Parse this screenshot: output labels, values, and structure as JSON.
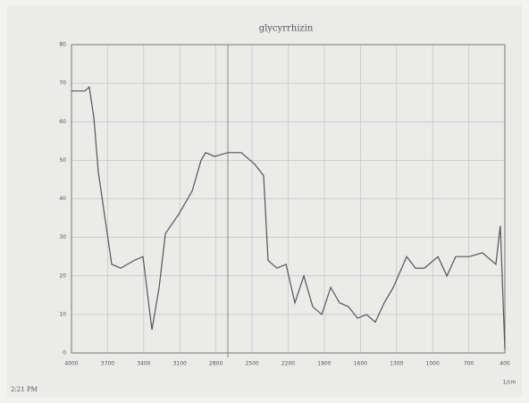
{
  "chart_data": {
    "type": "line",
    "title": "glycyrrhizin",
    "x_label": "1/cm",
    "x": [
      4000,
      3889,
      3852,
      3814,
      3777,
      3703,
      3666,
      3592,
      3480,
      3406,
      3332,
      3272,
      3220,
      3109,
      2998,
      2924,
      2886,
      2812,
      2701,
      2590,
      2478,
      2404,
      2367,
      2293,
      2218,
      2144,
      2070,
      1996,
      1921,
      1847,
      1773,
      1699,
      1624,
      1550,
      1476,
      1402,
      1327,
      1216,
      1142,
      1068,
      956,
      882,
      808,
      697,
      586,
      475,
      438,
      400
    ],
    "values": [
      68,
      68,
      69,
      61,
      47,
      31,
      23,
      22,
      24,
      25,
      6,
      17,
      31,
      36,
      42,
      50,
      52,
      51,
      52,
      52,
      49,
      46,
      24,
      22,
      23,
      13,
      20,
      12,
      10,
      17,
      13,
      12,
      9,
      10,
      8,
      13,
      17,
      25,
      22,
      22,
      25,
      20,
      25,
      25,
      26,
      23,
      33,
      1
    ],
    "color": "#555555",
    "xlim": [
      4000,
      400
    ],
    "xticks": [
      4000,
      3700,
      3400,
      3100,
      2800,
      2500,
      2200,
      1900,
      1600,
      1300,
      1000,
      700,
      400
    ],
    "ylim": [
      0,
      80
    ],
    "yticks": [
      0,
      10,
      20,
      30,
      40,
      50,
      60,
      70,
      80
    ],
    "grid": true
  },
  "footer": {
    "time": "2:21 PM"
  }
}
